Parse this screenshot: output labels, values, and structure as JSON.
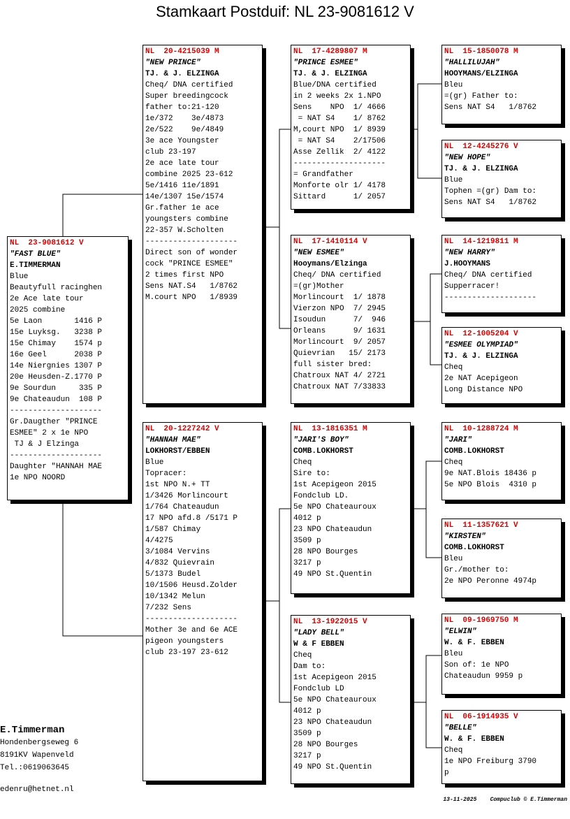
{
  "title": "Stamkaart Postduif: NL  23-9081612 V",
  "nodes": [
    {
      "ring": "NL  23-9081612 V",
      "name": "\"FAST BLUE\"",
      "owner": "E.TIMMERMAN",
      "lines": [
        "Blue",
        "Beautyfull racinghen",
        "2e Ace late tour",
        "2025 combine",
        "5e Laon       1416 P",
        "15e Luyksg.   3238 P",
        "15e Chimay    1574 p",
        "16e Geel      2038 P",
        "14e Niergnies 1307 P",
        "20e Heusden-Z.1770 P",
        "9e Sourdun     335 P",
        "9e Chateaudun  108 P",
        "--------------------",
        "Gr.Daugther \"PRINCE",
        "ESMEE\" 2 x 1e NPO",
        " TJ & J Elzinga",
        "--------------------",
        "Daughter \"HANNAH MAE",
        "1e NPO NOORD"
      ]
    },
    {
      "ring": "NL  20-4215039 M",
      "name": "\"NEW PRINCE\"",
      "owner": "TJ. & J. ELZINGA",
      "lines": [
        "Cheq/ DNA certified",
        "Super breedingcock",
        "father to:21-120",
        "1e/372    3e/4873",
        "2e/522    9e/4849",
        "3e ace Youngster",
        "club 23-197",
        "2e ace late tour",
        "combine 2025 23-612",
        "5e/1416 11e/1891",
        "14e/1307 15e/1574",
        "Gr.father 1e ace",
        "youngsters combine",
        "22-357 W.Scholten",
        "--------------------",
        "Direct son of wonder",
        "cock \"PRINCE ESMEE\"",
        "2 times first NPO",
        "Sens NAT.S4   1/8762",
        "M.court NPO   1/8939"
      ]
    },
    {
      "ring": "NL  20-1227242 V",
      "name": "\"HANNAH MAE\"",
      "owner": "LOKHORST/EBBEN",
      "lines": [
        "Blue",
        "Topracer:",
        "1st NPO N.+ TT",
        "1/3426 Morlincourt",
        "1/764 Chateaudun",
        "17 NPO afd.8 /5171 P",
        "1/587 Chimay",
        "4/4275",
        "3/1084 Vervins",
        "4/832 Quievrain",
        "5/1373 Budel",
        "10/1506 Heusd.Zolder",
        "10/1342 Melun",
        "7/232 Sens",
        "--------------------",
        "Mother 3e and 6e ACE",
        "pigeon youngsters",
        "club 23-197 23-612"
      ]
    },
    {
      "ring": "NL  17-4289807 M",
      "name": "\"PRINCE ESMEE\"",
      "owner": "TJ. & J. ELZINGA",
      "lines": [
        "Blue/DNA certified",
        "in 2 weeks 2x 1.NPO",
        "Sens    NPO  1/ 4666",
        " = NAT S4    1/ 8762",
        "M,court NPO  1/ 8939",
        " = NAT S4    2/17506",
        "Asse Zellik  2/ 4122",
        "--------------------",
        "= Grandfather",
        "Monforte olr 1/ 4178",
        "Sittard      1/ 2057"
      ]
    },
    {
      "ring": "NL  17-1410114 V",
      "name": "\"NEW ESMEE\"",
      "owner": "Hooymans/Elzinga",
      "lines": [
        "Cheq/ DNA certified",
        "=(gr)Mother",
        "Morlincourt  1/ 1878",
        "Vierzon NPO  7/ 2945",
        "Isoudun      7/  946",
        "Orleans      9/ 1631",
        "Morlincourt  9/ 2057",
        "Quievrian   15/ 2173",
        "full sister bred:",
        "Chatroux NAT 4/ 2721",
        "Chatroux NAT 7/33833"
      ]
    },
    {
      "ring": "NL  13-1816351 M",
      "name": "\"JARI'S BOY\"",
      "owner": "COMB.LOKHORST",
      "lines": [
        "Cheq",
        "Sire to:",
        "1st Acepigeon 2015",
        "Fondclub LD.",
        "5e NPO Chateauroux",
        "4012 p",
        "23 NPO Chateaudun",
        "3509 p",
        "28 NPO Bourges",
        "3217 p",
        "49 NPO St.Quentin"
      ]
    },
    {
      "ring": "NL  13-1922015 V",
      "name": "\"LADY BELL\"",
      "owner": "W & F EBBEN",
      "lines": [
        "Cheq",
        "Dam to:",
        "1st Acepigeon 2015",
        "Fondclub LD",
        "5e NPO Chateauroux",
        "4012 p",
        "23 NPO Chateaudun",
        "3509 p",
        "28 NPO Bourges",
        "3217 p",
        "49 NPO St.Quentin"
      ]
    },
    {
      "ring": "NL  15-1850078 M",
      "name": "\"HALLILUJAH\"",
      "owner": "HOOYMANS/ELZINGA",
      "lines": [
        "Bleu",
        "=(gr) Father to:",
        "Sens NAT S4   1/8762"
      ]
    },
    {
      "ring": "NL  12-4245276 V",
      "name": "\"NEW HOPE\"",
      "owner": "TJ. & J. ELZINGA",
      "lines": [
        "Blue",
        "Tophen =(gr) Dam to:",
        "Sens NAT S4   1/8762"
      ]
    },
    {
      "ring": "NL  14-1219811 M",
      "name": "\"NEW HARRY\"",
      "owner": "J.HOOYMANS",
      "lines": [
        "Cheq/ DNA certified",
        "Supperracer!",
        "--------------------"
      ]
    },
    {
      "ring": "NL  12-1005204 V",
      "name": "\"ESMEE OLYMPIAD\"",
      "owner": "TJ. & J. ELZINGA",
      "lines": [
        "Cheq",
        "2e NAT Acepigeon",
        "Long Distance NPO"
      ]
    },
    {
      "ring": "NL  10-1288724 M",
      "name": "\"JARI\"",
      "owner": "COMB.LOKHORST",
      "lines": [
        "Cheq",
        "9e NAT.Blois 18436 p",
        "5e NPO Blois  4310 p"
      ]
    },
    {
      "ring": "NL  11-1357621 V",
      "name": "\"KIRSTEN\"",
      "owner": "COMB.LOKHORST",
      "lines": [
        "Bleu",
        "Gr./mother to:",
        "2e NPO Peronne 4974p"
      ]
    },
    {
      "ring": "NL  09-1969750 M",
      "name": "\"ELWIN\"",
      "owner": "W. & F. EBBEN",
      "lines": [
        "Bleu",
        "Son of: 1e NPO",
        "Chateaudun 9959 p"
      ]
    },
    {
      "ring": "NL  06-1914935 V",
      "name": "\"BELLE\"",
      "owner": "W. & F. EBBEN",
      "lines": [
        "Cheq",
        "1e NPO Freiburg 3790",
        "p"
      ]
    }
  ],
  "breeder": {
    "name": "E.Timmerman",
    "lines": [
      "Hondenbergseweg 6",
      "8191KV  Wapenveld",
      "Tel.:0619063645"
    ],
    "email": "edenru@hetnet.nl"
  },
  "footer": {
    "date": "13-11-2025",
    "credit": "Compuclub © E.Timmerman"
  }
}
